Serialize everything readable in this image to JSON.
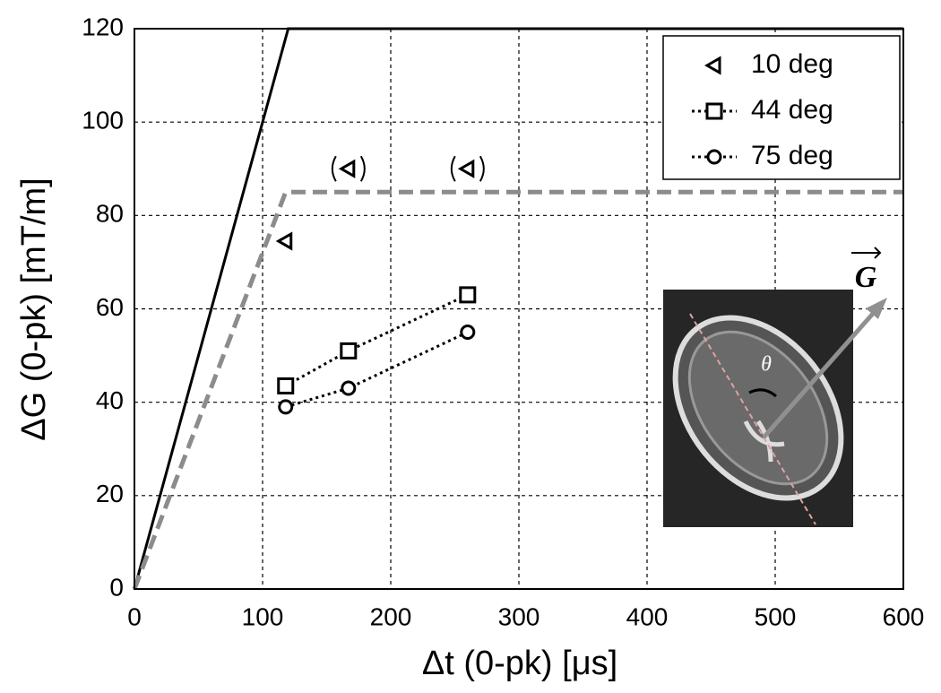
{
  "chart_data": {
    "type": "line",
    "xlabel": "Δt (0-pk) [μs]",
    "ylabel": "ΔG (0-pk) [mT/m]",
    "xlim": [
      0,
      600
    ],
    "xticks": [
      0,
      100,
      200,
      300,
      400,
      500,
      600
    ],
    "ylim": [
      0,
      120
    ],
    "yticks": [
      0,
      20,
      40,
      60,
      80,
      100,
      120
    ],
    "grid": true,
    "legend": "upper right",
    "series": [
      {
        "color": "#000000",
        "linestyle": "solid",
        "marker": "none",
        "x": [
          0,
          120,
          600
        ],
        "values": [
          0,
          120,
          120
        ]
      },
      {
        "color": "#8c8c8c",
        "linestyle": "dashed",
        "marker": "none",
        "x": [
          0,
          118,
          600
        ],
        "values": [
          0,
          85,
          85
        ]
      },
      {
        "name": "10 deg",
        "color": "#000000",
        "linestyle": "none",
        "marker": "triangle-left",
        "x": [
          118
        ],
        "values": [
          74.5
        ]
      },
      {
        "color": "#000000",
        "linestyle": "none",
        "marker": "triangle-left",
        "bracketed": true,
        "x": [
          167,
          260
        ],
        "values": [
          90,
          90
        ]
      },
      {
        "name": "44 deg",
        "color": "#000000",
        "linestyle": "dotted",
        "marker": "square",
        "x": [
          118,
          167,
          260
        ],
        "values": [
          43.5,
          51,
          63
        ]
      },
      {
        "name": "75 deg",
        "color": "#000000",
        "linestyle": "dotted",
        "marker": "circle",
        "x": [
          118,
          167,
          260
        ],
        "values": [
          39,
          43,
          55
        ]
      }
    ],
    "inset": {
      "vector_label": "G",
      "angle_label": "θ"
    }
  }
}
